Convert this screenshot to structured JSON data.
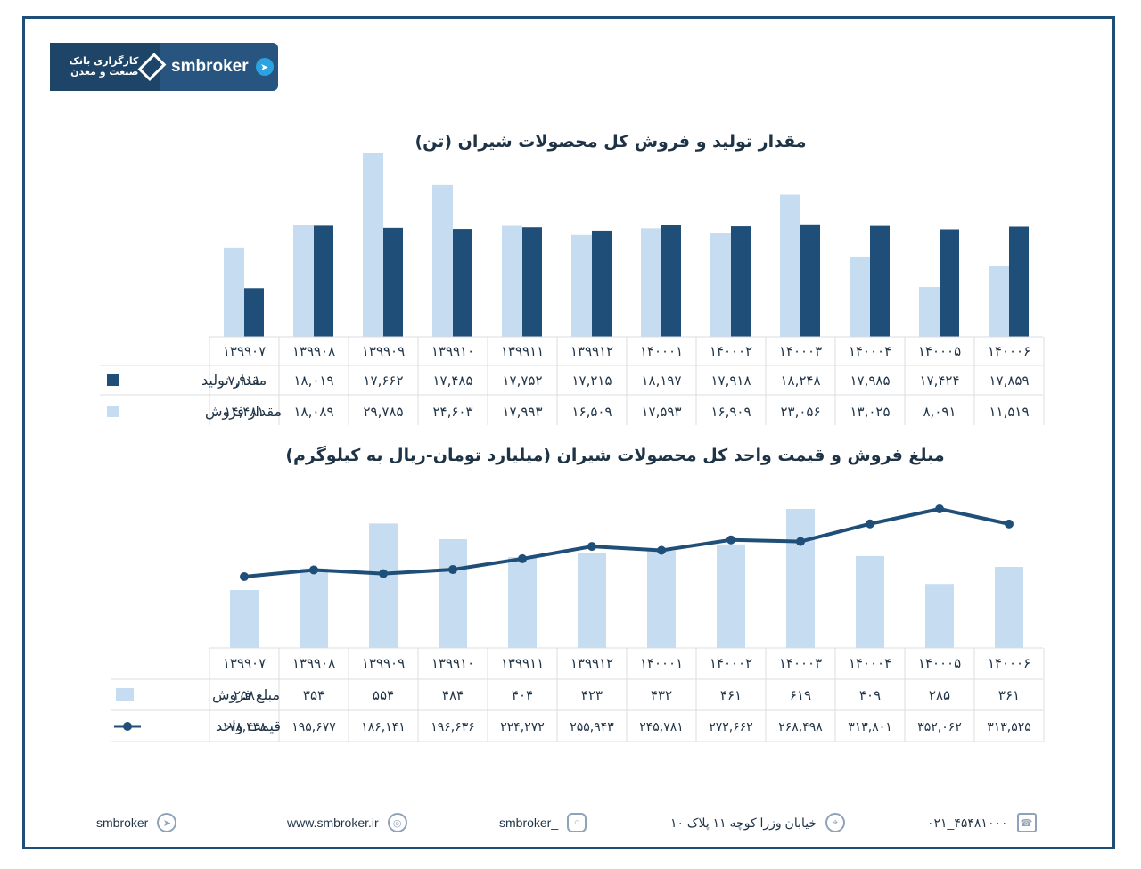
{
  "brand": {
    "bank_name": "کارگزاری بانک صنعت و معدن",
    "name": "smbroker"
  },
  "chart1_title": "مقدار تولید و فروش کل محصولات شیران (تن)",
  "chart2_title": "مبلغ فروش و قیمت واحد کل محصولات شیران (میلیارد تومان-ریال به کیلوگرم)",
  "colors": {
    "light": "#c6dcf1",
    "dark": "#1f4e79",
    "line": "#1f4e79"
  },
  "chart_data": [
    {
      "type": "bar",
      "title": "مقدار تولید و فروش کل محصولات شیران (تن)",
      "categories": [
        "۱۳۹۹۰۷",
        "۱۳۹۹۰۸",
        "۱۳۹۹۰۹",
        "۱۳۹۹۱۰",
        "۱۳۹۹۱۱",
        "۱۳۹۹۱۲",
        "۱۴۰۰۰۱",
        "۱۴۰۰۰۲",
        "۱۴۰۰۰۳",
        "۱۴۰۰۰۴",
        "۱۴۰۰۰۵",
        "۱۴۰۰۰۶"
      ],
      "series": [
        {
          "name": "مقدار تولید",
          "values": [
            7911,
            18019,
            17662,
            17485,
            17752,
            17215,
            18197,
            17918,
            18248,
            17985,
            17424,
            17859
          ],
          "labels": [
            "۷,۹۱۱",
            "۱۸,۰۱۹",
            "۱۷,۶۶۲",
            "۱۷,۴۸۵",
            "۱۷,۷۵۲",
            "۱۷,۲۱۵",
            "۱۸,۱۹۷",
            "۱۷,۹۱۸",
            "۱۸,۲۴۸",
            "۱۷,۹۸۵",
            "۱۷,۴۲۴",
            "۱۷,۸۵۹"
          ]
        },
        {
          "name": "مقدار فروش",
          "values": [
            14481,
            18089,
            29785,
            24603,
            17993,
            16509,
            17593,
            16909,
            23056,
            13025,
            8091,
            11519
          ],
          "labels": [
            "۱۴,۴۸۱",
            "۱۸,۰۸۹",
            "۲۹,۷۸۵",
            "۲۴,۶۰۳",
            "۱۷,۹۹۳",
            "۱۶,۵۰۹",
            "۱۷,۵۹۳",
            "۱۶,۹۰۹",
            "۲۳,۰۵۶",
            "۱۳,۰۲۵",
            "۸,۰۹۱",
            "۱۱,۵۱۹"
          ]
        }
      ]
    },
    {
      "type": "bar",
      "title": "مبلغ فروش و قیمت واحد کل محصولات شیران (میلیارد تومان-ریال به کیلوگرم)",
      "categories": [
        "۱۳۹۹۰۷",
        "۱۳۹۹۰۸",
        "۱۳۹۹۰۹",
        "۱۳۹۹۱۰",
        "۱۳۹۹۱۱",
        "۱۳۹۹۱۲",
        "۱۴۰۰۰۱",
        "۱۴۰۰۰۲",
        "۱۴۰۰۰۳",
        "۱۴۰۰۰۴",
        "۱۴۰۰۰۵",
        "۱۴۰۰۰۶"
      ],
      "series": [
        {
          "name": "مبلغ فروش",
          "type": "bar",
          "values": [
            258,
            354,
            554,
            484,
            404,
            423,
            432,
            461,
            619,
            409,
            285,
            361
          ],
          "labels": [
            "۲۵۸",
            "۳۵۴",
            "۵۵۴",
            "۴۸۴",
            "۴۰۴",
            "۴۲۳",
            "۴۳۲",
            "۴۶۱",
            "۶۱۹",
            "۴۰۹",
            "۲۸۵",
            "۳۶۱"
          ]
        },
        {
          "name": "قیمت واحد",
          "type": "line",
          "values": [
            178438,
            195677,
            186141,
            196636,
            224272,
            255943,
            245781,
            272662,
            268498,
            313801,
            352062,
            313525
          ],
          "labels": [
            "۱۷۸,۴۳۸",
            "۱۹۵,۶۷۷",
            "۱۸۶,۱۴۱",
            "۱۹۶,۶۳۶",
            "۲۲۴,۲۷۲",
            "۲۵۵,۹۴۳",
            "۲۴۵,۷۸۱",
            "۲۷۲,۶۶۲",
            "۲۶۸,۴۹۸",
            "۳۱۳,۸۰۱",
            "۳۵۲,۰۶۲",
            "۳۱۳,۵۲۵"
          ]
        }
      ]
    }
  ],
  "footer": {
    "telegram": "smbroker",
    "website": "www.smbroker.ir",
    "instagram": "smbroker_",
    "address": "خیابان وزرا کوچه ۱۱ پلاک ۱۰",
    "phone": "۰۲۱_۴۵۴۸۱۰۰۰"
  }
}
